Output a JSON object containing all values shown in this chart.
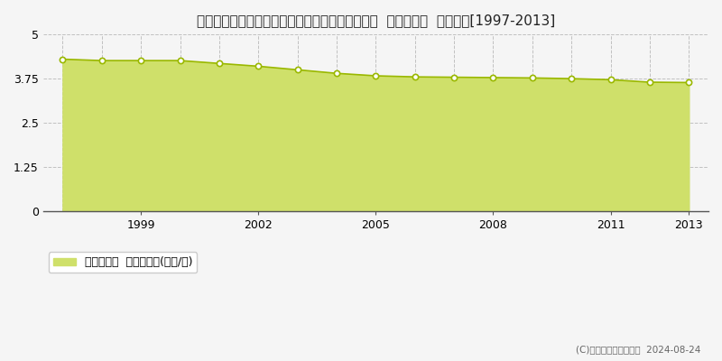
{
  "title": "福島県南会津郡下郷町大字中妻字大百刈６８番２  基準地価格  地価推移[1997-2013]",
  "years": [
    1997,
    1998,
    1999,
    2000,
    2001,
    2002,
    2003,
    2004,
    2005,
    2006,
    2007,
    2008,
    2009,
    2010,
    2011,
    2012,
    2013
  ],
  "values": [
    4.3,
    4.26,
    4.26,
    4.26,
    4.18,
    4.1,
    4.0,
    3.9,
    3.83,
    3.8,
    3.79,
    3.78,
    3.77,
    3.75,
    3.72,
    3.65,
    3.64
  ],
  "ylim": [
    0,
    5
  ],
  "yticks": [
    0,
    1.25,
    2.5,
    3.75,
    5
  ],
  "ytick_labels": [
    "0",
    "1.25",
    "2.5",
    "3.75",
    "5"
  ],
  "xticks": [
    1999,
    2002,
    2005,
    2008,
    2011,
    2013
  ],
  "fill_color": "#cfe06a",
  "fill_alpha": 1.0,
  "line_color": "#9ab800",
  "marker_facecolor": "#ffffff",
  "marker_edge_color": "#9ab800",
  "grid_color": "#bbbbbb",
  "bg_color": "#f5f5f5",
  "plot_bg_color": "#f5f5f5",
  "legend_label": "基準地価格  平均坪単価(万円/坪)",
  "copyright_text": "(C)土地価格ドットコム  2024-08-24",
  "title_fontsize": 11,
  "axis_fontsize": 9,
  "legend_fontsize": 9
}
